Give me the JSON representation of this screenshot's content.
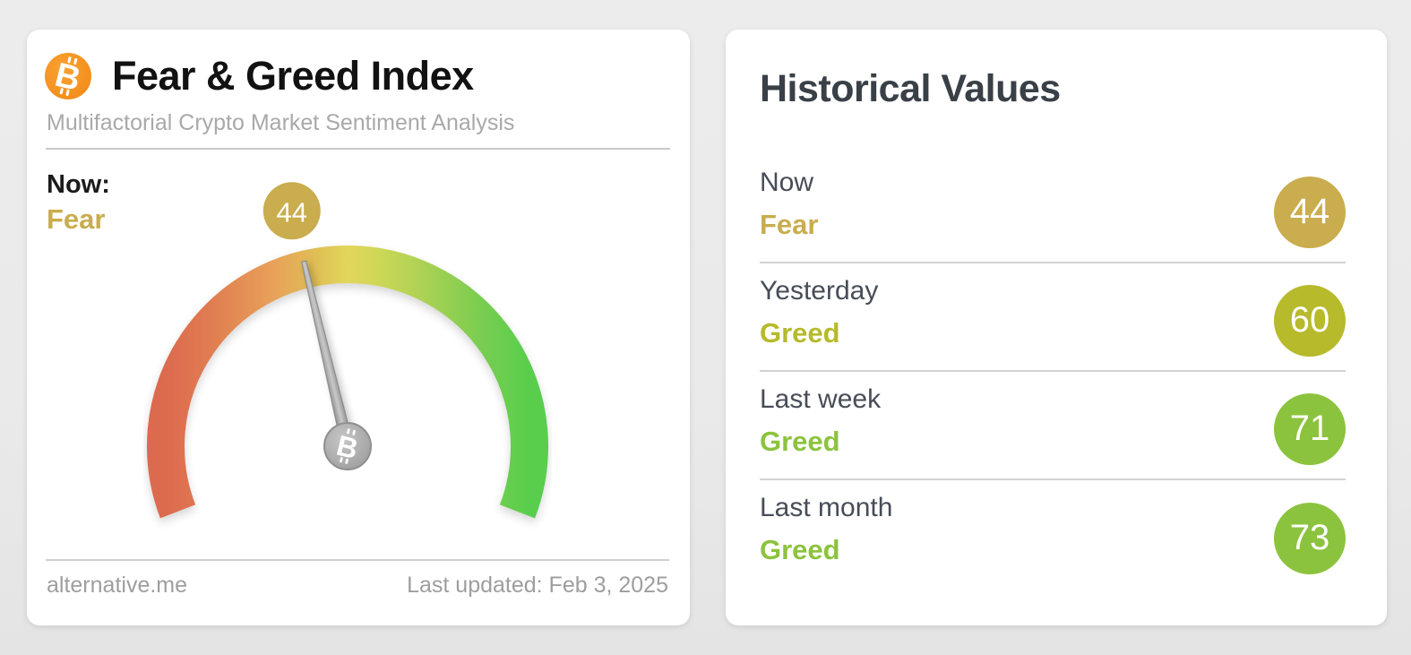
{
  "page": {
    "background": "#ebebeb"
  },
  "fear_greed_card": {
    "title": "Fear & Greed Index",
    "subtitle": "Multifactorial Crypto Market Sentiment Analysis",
    "bitcoin_icon": {
      "name": "bitcoin-icon",
      "color": "#f7941d"
    },
    "now": {
      "label": "Now:",
      "classification": "Fear",
      "value": "44",
      "color": "#c9ad4e"
    },
    "footer": {
      "site": "alternative.me",
      "last_updated": "Last updated: Feb 3, 2025"
    }
  },
  "historical_card": {
    "title": "Historical Values",
    "rows": [
      {
        "period": "Now",
        "classification": "Fear",
        "value": "44",
        "color": "#c9ad4e"
      },
      {
        "period": "Yesterday",
        "classification": "Greed",
        "value": "60",
        "color": "#b6ba2b"
      },
      {
        "period": "Last week",
        "classification": "Greed",
        "value": "71",
        "color": "#8cc33e"
      },
      {
        "period": "Last month",
        "classification": "Greed",
        "value": "73",
        "color": "#8cc33e"
      }
    ]
  },
  "chart_data": {
    "type": "gauge",
    "title": "Fear & Greed Index",
    "value": 44,
    "min": 0,
    "max": 100,
    "classification": "Fear",
    "sweep_degrees": 222,
    "needle_color": "#9e9e9e",
    "scale_gradient": [
      "#dc6a4f",
      "#e79f58",
      "#dfc055",
      "#e2d65c",
      "#a9d153",
      "#58ce4c"
    ],
    "historical": [
      {
        "period": "Now",
        "classification": "Fear",
        "value": 44
      },
      {
        "period": "Yesterday",
        "classification": "Greed",
        "value": 60
      },
      {
        "period": "Last week",
        "classification": "Greed",
        "value": 71
      },
      {
        "period": "Last month",
        "classification": "Greed",
        "value": 73
      }
    ]
  }
}
